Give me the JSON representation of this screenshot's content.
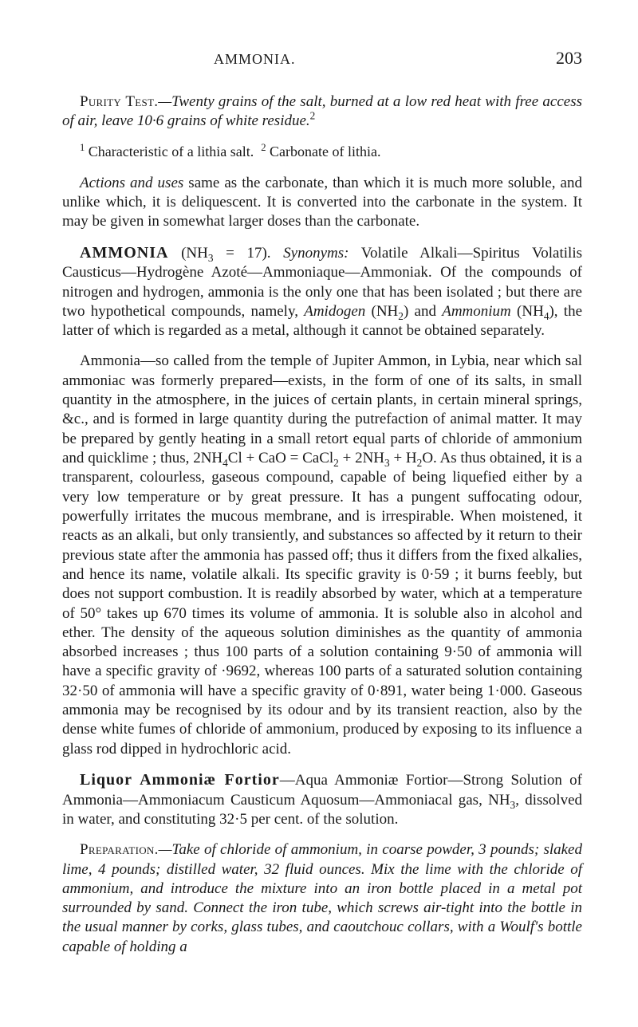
{
  "header": {
    "title": "AMMONIA.",
    "page": "203"
  },
  "purity": {
    "label": "Purity Test.",
    "body": "—Twenty grains of the salt, burned at a low red heat with free access of air, leave 10·6 grains of white residue."
  },
  "footnotes": {
    "f1": "Characteristic of a lithia salt.",
    "f2": "Carbonate of lithia."
  },
  "actions": {
    "label": "Actions and uses",
    "body": " same as the carbonate, than which it is much more soluble, and unlike which, it is deliquescent. It is converted into the carbonate in the system. It may be given in somewhat larger doses than the carbonate."
  },
  "ammonia": {
    "head": "AMMONIA",
    "formula_pre": " (NH",
    "formula_sub": "3",
    "formula_post": " = 17). ",
    "syn_label": "Synonyms:",
    "body1": " Volatile Alkali—Spiritus Volatilis Causticus—Hydrogène Azoté—Ammoniaque—Ammoniak. Of the compounds of nitrogen and hydrogen, ammonia is the only one that has been isolated ; but there are two hypothetical compounds, namely, ",
    "amidogen_i": "Amidogen",
    "body2": " (NH",
    "body2_sub": "2",
    "body3": ") and ",
    "ammonium_i": "Ammonium",
    "body4": " (NH",
    "body4_sub": "4",
    "body5": "), the latter of which is regarded as a metal, although it cannot be obtained separately."
  },
  "ammonia_p2": {
    "body_a": "Ammonia—so called from the temple of Jupiter Ammon, in Lybia, near which sal ammoniac was formerly prepared—exists, in the form of one of its salts, in small quantity in the atmosphere, in the juices of certain plants, in certain mineral springs, &c., and is formed in large quantity during the putrefaction of animal matter. It may be prepared by gently heating in a small retort equal parts of chloride of ammonium and quicklime ; thus, 2NH",
    "s1": "4",
    "body_b": "Cl + CaO = CaCl",
    "s2": "2",
    "body_c": " + 2NH",
    "s3": "3",
    "body_d": " + H",
    "s4": "2",
    "body_e": "O. As thus obtained, it is a transparent, colourless, gaseous compound, capable of being liquefied either by a very low temperature or by great pressure. It has a pungent suffocating odour, powerfully irritates the mucous membrane, and is irrespirable. When moistened, it reacts as an alkali, but only transiently, and substances so affected by it return to their previous state after the ammonia has passed off; thus it differs from the fixed alkalies, and hence its name, volatile alkali. Its specific gravity is 0·59 ; it burns feebly, but does not support combustion. It is readily absorbed by water, which at a temperature of 50° takes up 670 times its volume of ammonia. It is soluble also in alcohol and ether. The density of the aqueous solution diminishes as the quantity of ammonia absorbed increases ; thus 100 parts of a solution containing 9·50 of ammonia will have a specific gravity of ·9692, whereas 100 parts of a saturated solution containing 32·50 of ammonia will have a specific gravity of 0·891, water being 1·000. Gaseous ammonia may be recognised by its odour and by its transient reaction, also by the dense white fumes of chloride of ammonium, produced by exposing to its influence a glass rod dipped in hydrochloric acid."
  },
  "liquor": {
    "head": "Liquor Ammoniæ Fortior",
    "body_a": "—Aqua Ammoniæ Fortior—Strong Solution of Ammonia—Ammoniacum Causticum Aquosum—Ammoniacal gas, NH",
    "s1": "3",
    "body_b": ", dissolved in water, and constituting 32·5 per cent. of the solution."
  },
  "preparation": {
    "label": "Preparation.",
    "body": "—Take of chloride of ammonium, in coarse powder, 3 pounds; slaked lime, 4 pounds; distilled water, 32 fluid ounces. Mix the lime with the chloride of ammonium, and introduce the mixture into an iron bottle placed in a metal pot surrounded by sand. Connect the iron tube, which screws air-tight into the bottle in the usual manner by corks, glass tubes, and caoutchouc collars, with a Woulf's bottle capable of holding a"
  }
}
